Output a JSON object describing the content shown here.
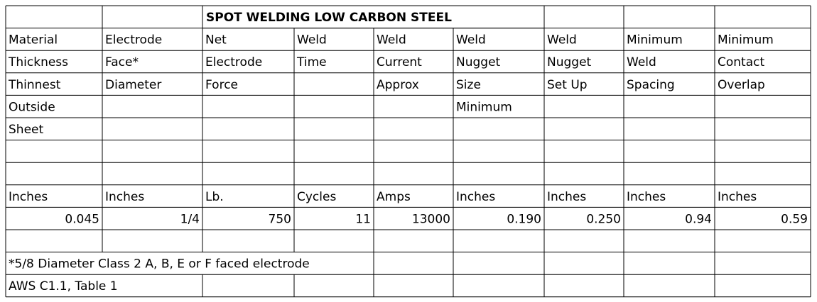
{
  "table": {
    "title": "SPOT WELDING LOW CARBON STEEL",
    "header_rows": [
      [
        "Material",
        "Electrode",
        "Net",
        "Weld",
        "Weld",
        "Weld",
        "Weld",
        "Minimum",
        "Minimum"
      ],
      [
        "Thickness",
        "Face*",
        "Electrode",
        "Time",
        "Current",
        "Nugget",
        "Nugget",
        "Weld",
        "Contact"
      ],
      [
        "Thinnest",
        "Diameter",
        "Force",
        null,
        "Approx",
        "Size",
        "Set Up",
        "Spacing",
        "Overlap"
      ],
      [
        "Outside",
        null,
        null,
        null,
        null,
        "Minimum",
        null,
        null,
        null
      ],
      [
        "Sheet",
        null,
        null,
        null,
        null,
        null,
        null,
        null,
        null
      ]
    ],
    "units": [
      "Inches",
      "Inches",
      "Lb.",
      "Cycles",
      "Amps",
      "Inches",
      "Inches",
      "Inches",
      "Inches"
    ],
    "values": [
      "0.045",
      "1/4",
      "750",
      "11",
      "13000",
      "0.190",
      "0.250",
      "0.94",
      "0.59"
    ],
    "footnote": "*5/8 Diameter Class 2 A, B, E or F faced electrode",
    "source": "AWS C1.1, Table 1"
  }
}
